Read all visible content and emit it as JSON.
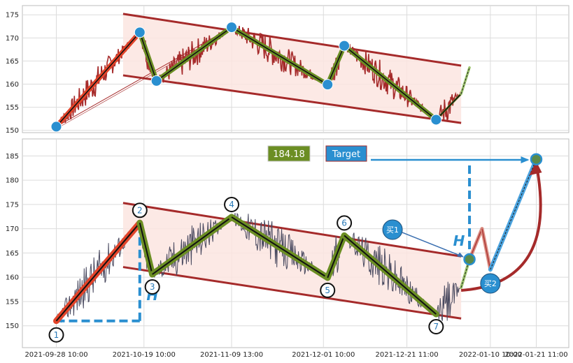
{
  "chart_data": [
    {
      "type": "line",
      "title": "",
      "ylim": [
        149.5,
        177
      ],
      "y_ticks": [
        150,
        155,
        160,
        165,
        170,
        175
      ],
      "grid": true,
      "pivots": [
        {
          "x": "2021-09-28",
          "y": 150.8
        },
        {
          "x": "2021-10-18",
          "y": 171.2
        },
        {
          "x": "2021-10-22",
          "y": 160.7
        },
        {
          "x": "2021-11-09",
          "y": 172.3
        },
        {
          "x": "2021-12-02",
          "y": 159.9
        },
        {
          "x": "2021-12-06",
          "y": 168.3
        },
        {
          "x": "2021-12-28",
          "y": 152.3
        },
        {
          "x": "2022-01-03",
          "y": 157.9
        }
      ],
      "projection": {
        "x": "2022-01-05",
        "y": 163.6
      },
      "channel": {
        "upper": [
          {
            "x": "2021-10-14",
            "y": 175.2
          },
          {
            "x": "2022-01-03",
            "y": 164.0
          }
        ],
        "lower": [
          {
            "x": "2021-10-14",
            "y": 161.9
          },
          {
            "x": "2022-01-03",
            "y": 151.6
          }
        ]
      }
    },
    {
      "type": "line",
      "title": "",
      "ylim": [
        145.5,
        188.5
      ],
      "y_ticks": [
        150,
        155,
        160,
        165,
        170,
        175,
        180,
        185
      ],
      "x_ticks": [
        "2021-09-28 10:00",
        "2021-10-19 10:00",
        "2021-11-09 13:00",
        "2021-12-01 10:00",
        "2021-12-21 11:00",
        "2022-01-10 10:00",
        "2022-01-21 11:00"
      ],
      "grid": true,
      "pivots": [
        {
          "label": "1",
          "x": "2021-09-28",
          "y": 151.0
        },
        {
          "label": "2",
          "x": "2021-10-18",
          "y": 171.2
        },
        {
          "label": "3",
          "x": "2021-10-21",
          "y": 160.6
        },
        {
          "label": "4",
          "x": "2021-11-09",
          "y": 172.4
        },
        {
          "label": "5",
          "x": "2021-12-02",
          "y": 159.9
        },
        {
          "label": "6",
          "x": "2021-12-06",
          "y": 168.6
        },
        {
          "label": "7",
          "x": "2021-12-28",
          "y": 152.4
        }
      ],
      "channel": {
        "upper": [
          {
            "x": "2021-10-14",
            "y": 175.3
          },
          {
            "x": "2022-01-03",
            "y": 164.3
          }
        ],
        "lower": [
          {
            "x": "2021-10-14",
            "y": 162.1
          },
          {
            "x": "2022-01-03",
            "y": 151.5
          }
        ]
      },
      "forecast": [
        {
          "x": "2022-01-03",
          "y": 157.9
        },
        {
          "x": "2022-01-05",
          "y": 163.7
        },
        {
          "x": "2022-01-08",
          "y": 170.0
        },
        {
          "x": "2022-01-10",
          "y": 161.6
        },
        {
          "x": "2022-01-21",
          "y": 184.3
        }
      ],
      "buy_points": [
        {
          "label": "买1",
          "x": "2022-01-05",
          "y": 163.7
        },
        {
          "label": "买2",
          "x": "2022-01-10",
          "y": 161.6
        }
      ],
      "target_value": 184.18,
      "target_label": "Target",
      "value_label": "184.18",
      "height_label": "H"
    }
  ],
  "colors": {
    "price_top": "#a52a2a",
    "price_bottom": "#4a4a60",
    "channel_line": "#a52a2a",
    "channel_fill": "#fbe5e0",
    "first_leg": "#e2442a",
    "zigzag_outer": "#6b8e23",
    "zigzag_inner": "#111111",
    "pivot_marker": "#2a8fd0",
    "target_box": "#2a8fd0",
    "value_box": "#6b8e23",
    "forecast_up": "#4aa3df",
    "curve_arrow": "#a52a2a"
  }
}
